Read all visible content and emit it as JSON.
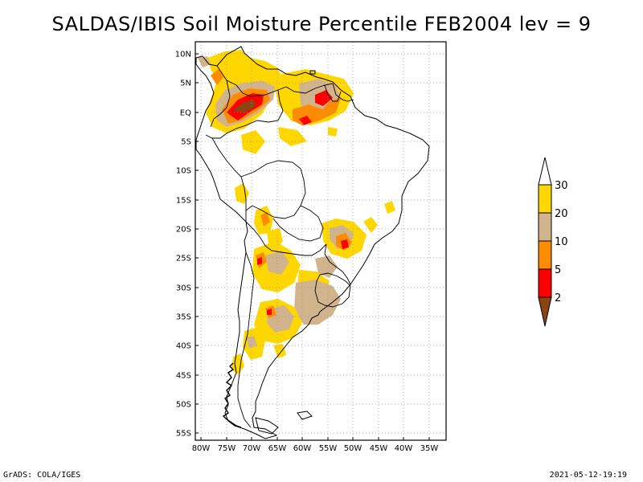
{
  "title": "SALDAS/IBIS Soil Moisture Percentile FEB2004 lev = 9",
  "footer": {
    "left": "GrADS: COLA/IGES",
    "right": "2021-05-12-19:19"
  },
  "map": {
    "region": "South America",
    "projection": "latitude-longitude",
    "lon_range": [
      -81,
      -32
    ],
    "lat_range": [
      -56,
      12
    ],
    "lon_ticks": [
      "80W",
      "75W",
      "70W",
      "65W",
      "60W",
      "55W",
      "50W",
      "45W",
      "40W",
      "35W"
    ],
    "lat_ticks": [
      "10N",
      "5N",
      "EQ",
      "5S",
      "10S",
      "15S",
      "20S",
      "25S",
      "30S",
      "35S",
      "40S",
      "45S",
      "50S",
      "55S"
    ],
    "grid": "dotted",
    "boundaries": "country borders"
  },
  "colorbar": {
    "labels": [
      "30",
      "20",
      "10",
      "5",
      "2"
    ],
    "colors": {
      "above_30": "#ffffff",
      "20_30": "#ffd700",
      "10_20": "#d2b48c",
      "5_10": "#ff8c00",
      "2_5": "#ff0000",
      "below_2": "#8b4513"
    }
  },
  "colors": {
    "outline": "#000000",
    "grid": "#9a9a9a",
    "background": "#ffffff"
  }
}
